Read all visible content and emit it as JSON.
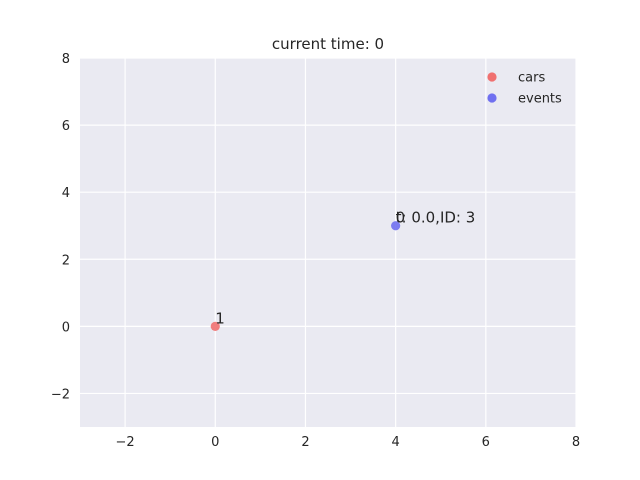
{
  "chart_data": {
    "type": "scatter",
    "title": "current time: 0",
    "xlabel": "",
    "ylabel": "",
    "xlim": [
      -3,
      8
    ],
    "ylim": [
      -3,
      8
    ],
    "xticks": [
      -2,
      0,
      2,
      4,
      6,
      8
    ],
    "yticks": [
      -2,
      0,
      2,
      4,
      6,
      8
    ],
    "grid": true,
    "legend_position": "top-right",
    "series": [
      {
        "name": "cars",
        "color": "#f07070",
        "points": [
          {
            "x": 0,
            "y": 0
          }
        ]
      },
      {
        "name": "events",
        "color": "#7070f0",
        "points": [
          {
            "x": 4,
            "y": 3
          }
        ]
      }
    ],
    "annotations": [
      {
        "text": "1",
        "x": 0,
        "y": 0
      },
      {
        "text": "0",
        "x": 4,
        "y": 3
      },
      {
        "text": "t: 0.0,ID: 3",
        "x": 4,
        "y": 3
      }
    ]
  }
}
